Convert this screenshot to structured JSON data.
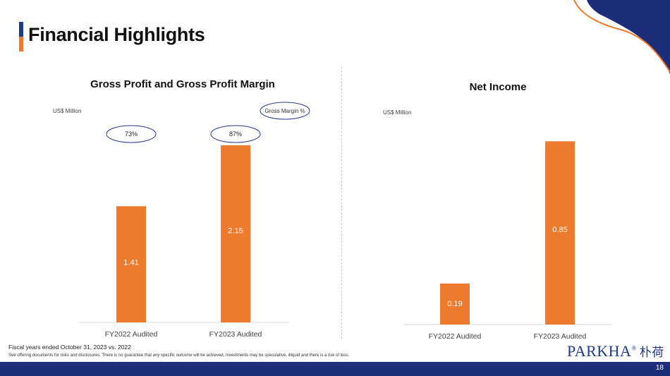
{
  "page": {
    "title": "Financial Highlights",
    "page_number": "18",
    "footnote": "Fiscal years ended October 31, 2023 vs. 2022",
    "disclaimer": "See offering documents for risks and disclosures. There is no guarantee that any specific outcome will be achieved. Investments may be speculative, illiquid and there is a risk of loss.",
    "brand_name": "PARKHA",
    "brand_mark": "®",
    "brand_chinese": "朴荷"
  },
  "colors": {
    "bar": "#ee7a2e",
    "navy": "#1c2e7a",
    "accent_orange": "#ee7a2e",
    "oval_border": "#2a3a8a"
  },
  "chart_data": [
    {
      "type": "bar",
      "title": "Gross Profit and Gross Profit Margin",
      "ylabel": "US$ Million",
      "categories": [
        "FY2022 Audited",
        "FY2023 Audited"
      ],
      "values": [
        1.41,
        2.15
      ],
      "data_labels": [
        "1.41",
        "2.15"
      ],
      "ylim": [
        0,
        2.8
      ],
      "annotation_label": "Gross Margin %",
      "margins": [
        "73%",
        "87%"
      ],
      "grid": false
    },
    {
      "type": "bar",
      "title": "Net Income",
      "ylabel": "US$ Million",
      "categories": [
        "FY2022 Audited",
        "FY2023 Audited"
      ],
      "values": [
        0.19,
        0.85
      ],
      "data_labels": [
        "0.19",
        "0.85"
      ],
      "ylim": [
        0,
        1.08
      ],
      "grid": false
    }
  ]
}
